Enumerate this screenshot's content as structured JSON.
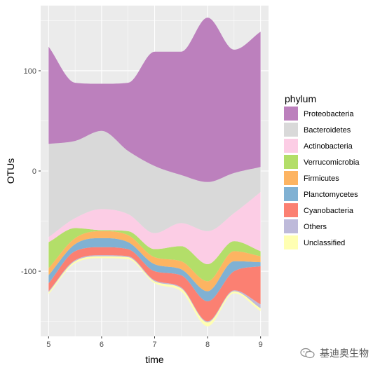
{
  "chart_data": {
    "type": "area",
    "stacked": true,
    "smooth": true,
    "title": "",
    "xlabel": "time",
    "ylabel": "OTUs",
    "x": [
      5,
      5.5,
      6,
      6.5,
      7,
      7.5,
      8,
      8.5,
      9
    ],
    "xlim": [
      4.85,
      9.15
    ],
    "ylim": [
      -165,
      165
    ],
    "xticks": [
      5,
      6,
      7,
      8,
      9
    ],
    "yticks": [
      -100,
      0,
      100
    ],
    "grid": true,
    "background": "#ebebeb",
    "legend": {
      "title": "phylum",
      "position": "right"
    },
    "boundaries": [
      [
        -123,
        -92,
        -87,
        -88,
        -112,
        -120,
        -155,
        -122,
        -140
      ],
      [
        -121,
        -90,
        -85,
        -86,
        -110,
        -117,
        -151,
        -120,
        -137
      ],
      [
        -120,
        -89,
        -84,
        -85,
        -109,
        -116,
        -150,
        -119,
        -133
      ],
      [
        -112,
        -80,
        -76,
        -78,
        -100,
        -104,
        -130,
        -100,
        -95
      ],
      [
        -104,
        -73,
        -67,
        -71,
        -93,
        -98,
        -120,
        -90,
        -91
      ],
      [
        -97,
        -67,
        -60,
        -64,
        -86,
        -90,
        -110,
        -80,
        -85
      ],
      [
        -71,
        -57,
        -59,
        -60,
        -78,
        -75,
        -93,
        -70,
        -80
      ],
      [
        -66,
        -47,
        -38,
        -43,
        -62,
        -52,
        -60,
        -42,
        -21
      ],
      [
        27,
        30,
        40,
        20,
        5,
        -4,
        -11,
        -2,
        4
      ],
      [
        124,
        88,
        87,
        88,
        119,
        119,
        153,
        121,
        139
      ]
    ],
    "series": [
      {
        "name": "Unclassified",
        "color": "#ffffb3"
      },
      {
        "name": "Others",
        "color": "#bebada"
      },
      {
        "name": "Cyanobacteria",
        "color": "#fb8072"
      },
      {
        "name": "Planctomycetes",
        "color": "#80b1d3"
      },
      {
        "name": "Firmicutes",
        "color": "#fdb462"
      },
      {
        "name": "Verrucomicrobia",
        "color": "#b3de69"
      },
      {
        "name": "Actinobacteria",
        "color": "#fccde5"
      },
      {
        "name": "Bacteroidetes",
        "color": "#d9d9d9"
      },
      {
        "name": "Proteobacteria",
        "color": "#bc80bd"
      }
    ],
    "legend_order": [
      "Proteobacteria",
      "Bacteroidetes",
      "Actinobacteria",
      "Verrucomicrobia",
      "Firmicutes",
      "Planctomycetes",
      "Cyanobacteria",
      "Others",
      "Unclassified"
    ]
  },
  "watermark": {
    "text": "基迪奥生物",
    "icon": "wechat-icon"
  }
}
